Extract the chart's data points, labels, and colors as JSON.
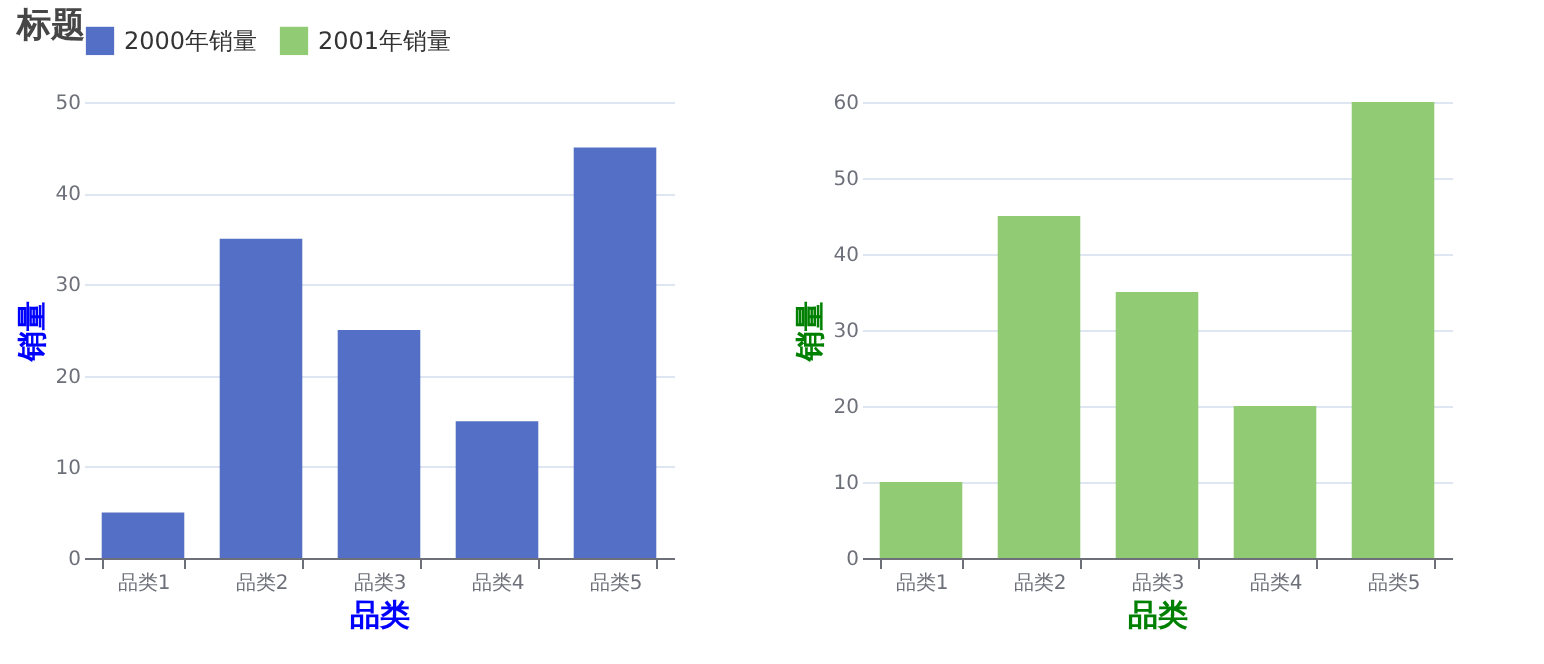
{
  "chart_data": [
    {
      "type": "bar",
      "title": "标题",
      "xlabel": "品类",
      "ylabel": "销量",
      "categories": [
        "品类1",
        "品类2",
        "品类3",
        "品类4",
        "品类5"
      ],
      "series": [
        {
          "name": "2000年销量",
          "color": "#5470c6",
          "values": [
            5,
            35,
            25,
            15,
            45
          ]
        }
      ],
      "ylim": [
        0,
        50
      ],
      "yticks": [
        0,
        10,
        20,
        30,
        40,
        50
      ],
      "grid": "y",
      "legend": "top"
    },
    {
      "type": "bar",
      "xlabel": "品类",
      "ylabel": "销量",
      "categories": [
        "品类1",
        "品类2",
        "品类3",
        "品类4",
        "品类5"
      ],
      "series": [
        {
          "name": "2001年销量",
          "color": "#91cc75",
          "values": [
            10,
            45,
            35,
            20,
            60
          ]
        }
      ],
      "ylim": [
        0,
        60
      ],
      "yticks": [
        0,
        10,
        20,
        30,
        40,
        50,
        60
      ],
      "grid": "y",
      "legend": "top"
    }
  ]
}
